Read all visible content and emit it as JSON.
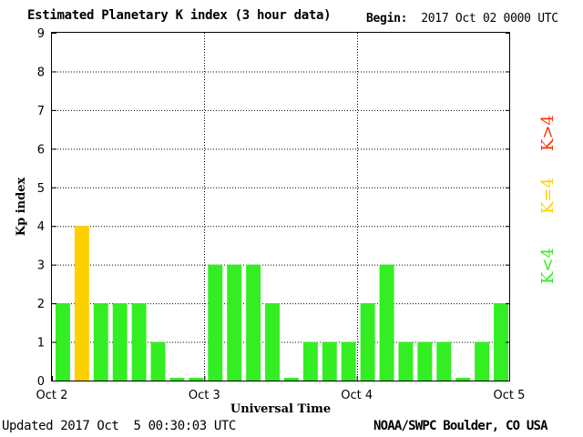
{
  "header": {
    "title": "Estimated Planetary K index (3 hour data)",
    "begin_label": "Begin:",
    "begin_value": "2017 Oct 02 0000 UTC"
  },
  "footer": {
    "updated_label": "Updated",
    "updated_value": "2017 Oct  5 00:30:03 UTC",
    "credit": "NOAA/SWPC Boulder, CO USA"
  },
  "legend": [
    {
      "label": "K<4",
      "color": "#33ee22"
    },
    {
      "label": "K=4",
      "color": "#ffd000"
    },
    {
      "label": "K>4",
      "color": "#ff3300"
    }
  ],
  "chart_data": {
    "type": "bar",
    "xlabel": "Universal Time",
    "ylabel": "Kp index",
    "ylim": [
      0,
      9
    ],
    "yticks": [
      0,
      1,
      2,
      3,
      4,
      5,
      6,
      7,
      8,
      9
    ],
    "x_tick_labels": [
      "Oct 2",
      "Oct 3",
      "Oct 4",
      "Oct 5"
    ],
    "interval_hours": 3,
    "grid": true,
    "values": [
      2,
      4,
      2,
      2,
      2,
      1,
      0,
      0,
      3,
      3,
      3,
      2,
      0,
      1,
      1,
      1,
      2,
      3,
      1,
      1,
      1,
      0,
      1,
      2
    ],
    "colors": {
      "below_4": "#33ee22",
      "equal_4": "#ffd000",
      "above_4": "#ff3300"
    }
  }
}
